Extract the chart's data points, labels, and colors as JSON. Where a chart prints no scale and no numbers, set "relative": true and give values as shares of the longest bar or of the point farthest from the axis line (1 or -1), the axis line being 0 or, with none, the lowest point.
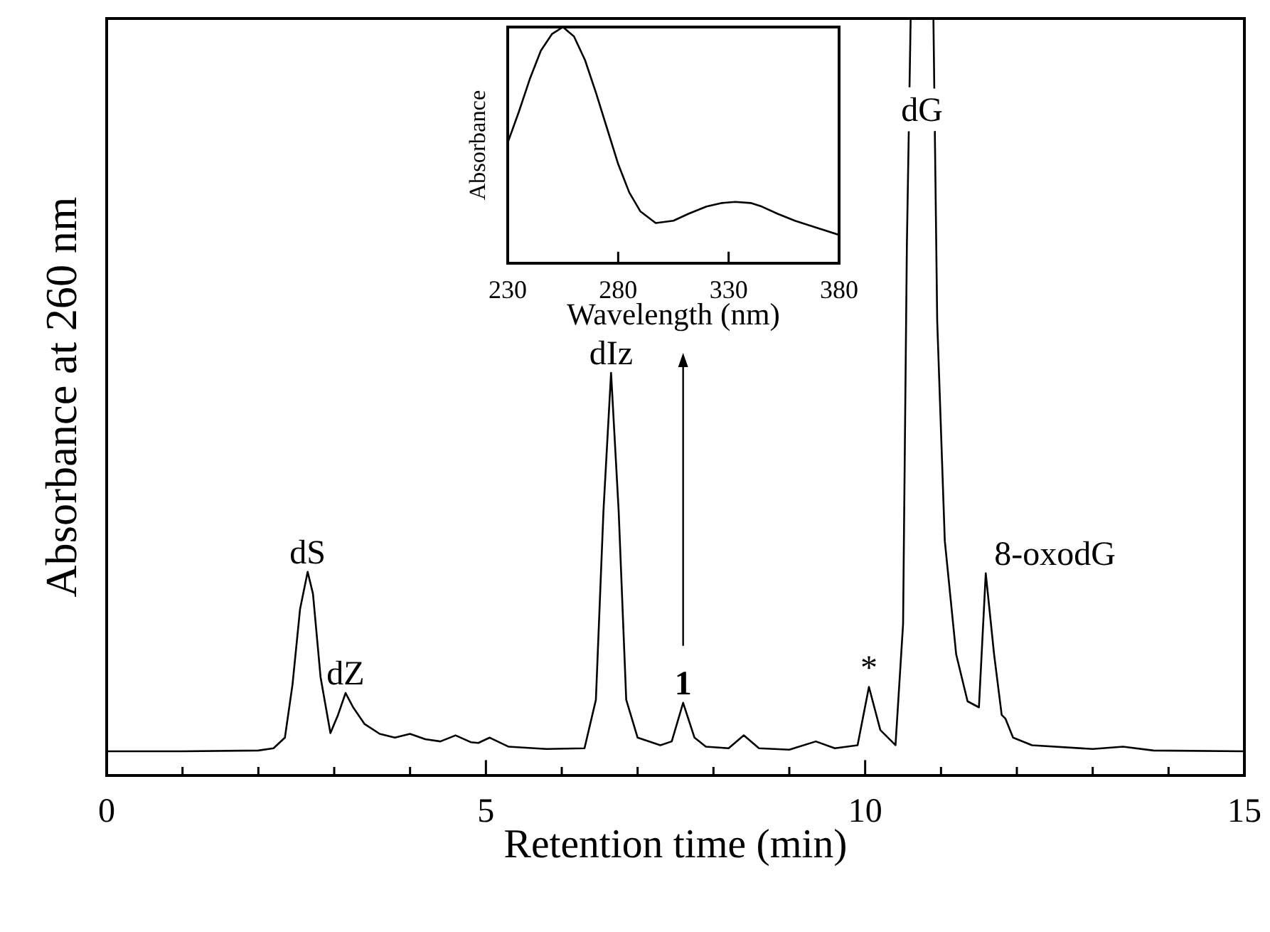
{
  "chart_data": [
    {
      "type": "line",
      "relative": true,
      "xlabel": "Retention time (min)",
      "ylabel": "Absorbance at 260 nm",
      "xlim": [
        0,
        15
      ],
      "xticks": [
        0,
        {
          "value": 1,
          "label": null
        },
        {
          "value": 2,
          "label": null
        },
        {
          "value": 3,
          "label": null
        },
        {
          "value": 4,
          "label": null
        },
        5,
        {
          "value": 6,
          "label": null
        },
        {
          "value": 7,
          "label": null
        },
        {
          "value": 8,
          "label": null
        },
        {
          "value": 9,
          "label": null
        },
        10,
        {
          "value": 11,
          "label": null
        },
        {
          "value": 12,
          "label": null
        },
        {
          "value": 13,
          "label": null
        },
        {
          "value": 14,
          "label": null
        },
        15
      ],
      "grid": false,
      "marker": "none",
      "line_style": "solid",
      "series": [
        {
          "color": "#000000",
          "x": [
            0,
            1,
            2,
            2.2,
            2.35,
            2.45,
            2.55,
            2.65,
            2.72,
            2.82,
            2.95,
            3.05,
            3.15,
            3.25,
            3.4,
            3.6,
            3.8,
            4.0,
            4.2,
            4.4,
            4.6,
            4.8,
            4.9,
            5.05,
            5.3,
            5.8,
            6.3,
            6.45,
            6.55,
            6.65,
            6.75,
            6.85,
            7.0,
            7.3,
            7.45,
            7.6,
            7.75,
            7.9,
            8.2,
            8.4,
            8.6,
            9.0,
            9.35,
            9.6,
            9.9,
            10.05,
            10.2,
            10.4,
            10.5,
            10.55,
            10.6,
            10.75,
            10.9,
            10.95,
            11.05,
            11.2,
            11.35,
            11.5,
            11.59,
            11.7,
            11.8,
            11.85,
            11.95,
            12.2,
            13,
            13.4,
            13.8,
            15
          ],
          "values": [
            0.032,
            0.032,
            0.033,
            0.036,
            0.05,
            0.12,
            0.22,
            0.269,
            0.24,
            0.13,
            0.056,
            0.08,
            0.109,
            0.09,
            0.068,
            0.055,
            0.05,
            0.055,
            0.048,
            0.045,
            0.053,
            0.044,
            0.043,
            0.05,
            0.038,
            0.035,
            0.036,
            0.1,
            0.35,
            0.532,
            0.35,
            0.1,
            0.05,
            0.04,
            0.045,
            0.096,
            0.05,
            0.038,
            0.036,
            0.053,
            0.036,
            0.034,
            0.045,
            0.036,
            0.04,
            0.117,
            0.06,
            0.04,
            0.2,
            0.7,
            1,
            1,
            1,
            0.6,
            0.31,
            0.16,
            0.098,
            0.09,
            0.267,
            0.16,
            0.08,
            0.075,
            0.05,
            0.04,
            0.035,
            0.038,
            0.033,
            0.032
          ]
        }
      ],
      "annotations": [
        {
          "text": "dS",
          "x": 2.65,
          "y": 0.269
        },
        {
          "text": "dZ",
          "x": 3.15,
          "y": 0.109
        },
        {
          "text": "dIz",
          "x": 6.65,
          "y": 0.532
        },
        {
          "text": "1",
          "x": 7.6,
          "y": 0.096
        },
        {
          "text": "*",
          "x": 10.05,
          "y": 0.117
        },
        {
          "text": "dG",
          "x": 10.75,
          "y": 1
        },
        {
          "text": "8-oxodG",
          "x": 11.59,
          "y": 0.267
        }
      ]
    },
    {
      "type": "line",
      "relative": true,
      "xlabel": "Wavelength (nm)",
      "ylabel": "Absorbance",
      "xlim": [
        230,
        380
      ],
      "xticks": [
        230,
        280,
        330,
        380
      ],
      "grid": false,
      "marker": "none",
      "line_style": "solid",
      "series": [
        {
          "color": "#000000",
          "x": [
            230,
            235,
            240,
            245,
            250,
            255,
            260,
            265,
            270,
            275,
            280,
            285,
            290,
            297,
            305,
            312,
            320,
            327,
            333,
            340,
            345,
            352,
            360,
            370,
            380
          ],
          "values": [
            0.51,
            0.64,
            0.78,
            0.9,
            0.97,
            1,
            0.96,
            0.86,
            0.72,
            0.57,
            0.42,
            0.3,
            0.22,
            0.17,
            0.18,
            0.21,
            0.24,
            0.255,
            0.26,
            0.255,
            0.24,
            0.21,
            0.18,
            0.15,
            0.12
          ]
        }
      ]
    }
  ]
}
